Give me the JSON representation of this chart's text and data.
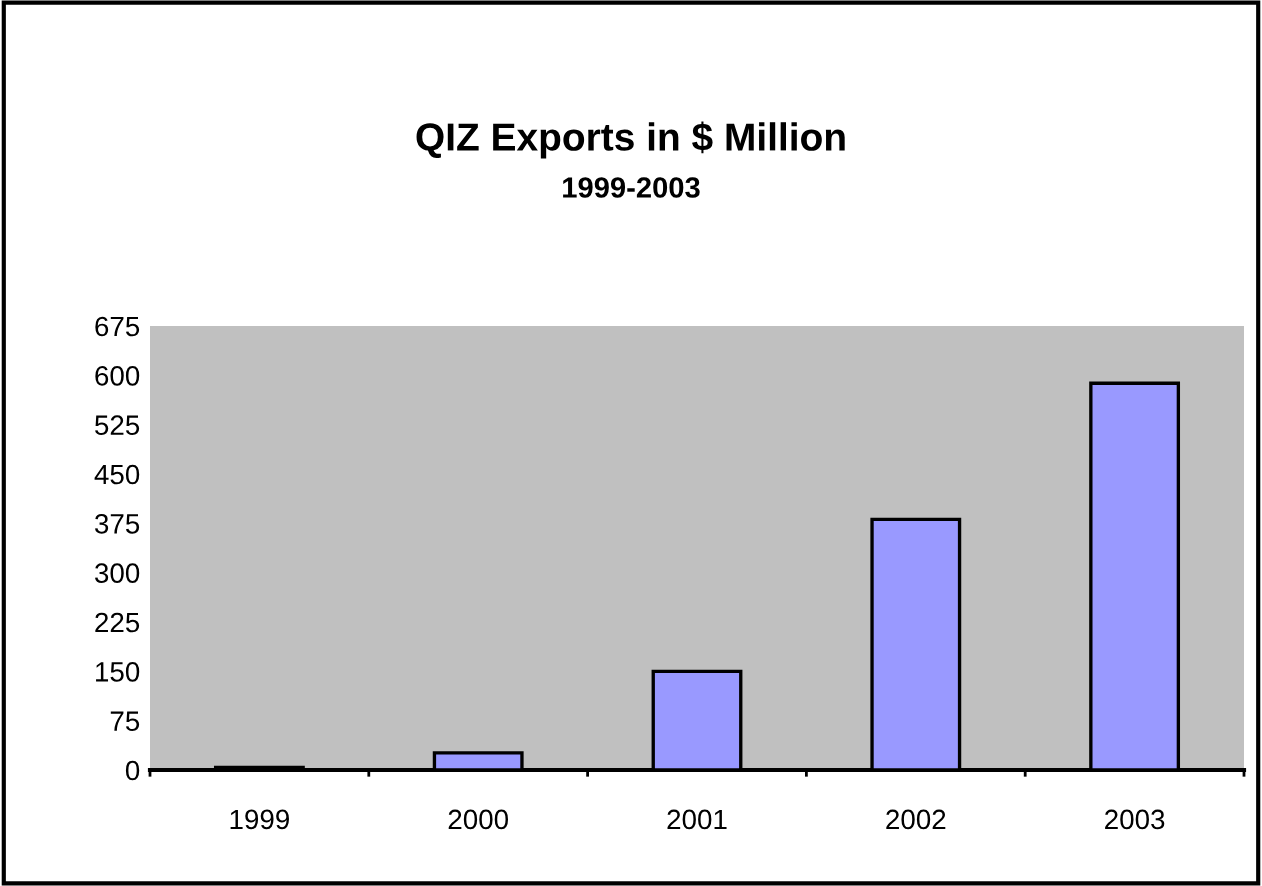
{
  "chart_data": {
    "type": "bar",
    "title": "QIZ Exports in $ Million",
    "subtitle": "1999-2003",
    "categories": [
      "1999",
      "2000",
      "2001",
      "2002",
      "2003"
    ],
    "values": [
      4,
      26,
      150,
      381,
      588
    ],
    "color": "#9999ff",
    "ylim": [
      0,
      675
    ],
    "yticks": [
      0,
      75,
      150,
      225,
      300,
      375,
      450,
      525,
      600,
      675
    ],
    "grid": false,
    "legend": false
  }
}
